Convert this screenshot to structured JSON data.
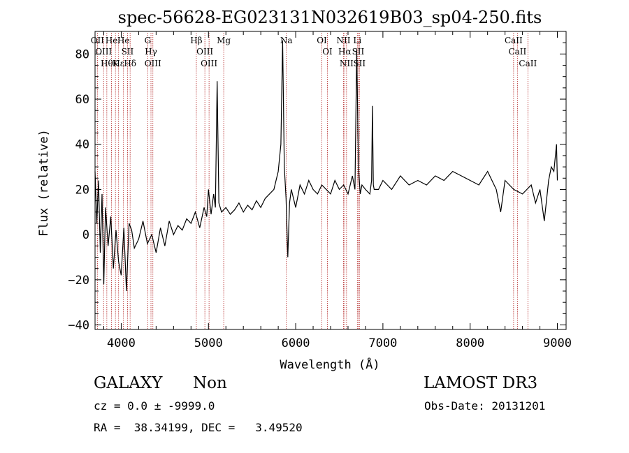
{
  "chart_data": {
    "type": "line",
    "title": "spec-56628-EG023131N032619B03_sp04-250.fits",
    "xlabel": "Wavelength (Å)",
    "ylabel": "Flux (relative)",
    "xlim": [
      3700,
      9100
    ],
    "ylim": [
      -42,
      90
    ],
    "x_ticks": [
      4000,
      5000,
      6000,
      7000,
      8000,
      9000
    ],
    "y_ticks": [
      -40,
      -20,
      0,
      20,
      40,
      60,
      80
    ],
    "line_color": "#000000",
    "marker_color": "#b22222",
    "series": [
      {
        "x": [
          3700,
          3720,
          3740,
          3760,
          3780,
          3800,
          3820,
          3850,
          3880,
          3910,
          3940,
          3970,
          4000,
          4030,
          4060,
          4090,
          4120,
          4150,
          4200,
          4250,
          4300,
          4350,
          4400,
          4450,
          4500,
          4550,
          4600,
          4650,
          4700,
          4750,
          4800,
          4850,
          4900,
          4950,
          4980,
          5000,
          5030,
          5060,
          5080,
          5100,
          5120,
          5150,
          5200,
          5250,
          5300,
          5350,
          5400,
          5450,
          5500,
          5550,
          5600,
          5650,
          5700,
          5750,
          5800,
          5830,
          5850,
          5870,
          5890,
          5910,
          5930,
          5950,
          6000,
          6050,
          6100,
          6150,
          6200,
          6250,
          6300,
          6350,
          6400,
          6450,
          6500,
          6550,
          6600,
          6650,
          6680,
          6700,
          6720,
          6740,
          6760,
          6800,
          6850,
          6870,
          6880,
          6890,
          6900,
          6950,
          7000,
          7100,
          7200,
          7300,
          7400,
          7500,
          7600,
          7700,
          7800,
          7900,
          8000,
          8100,
          8200,
          8300,
          8350,
          8400,
          8500,
          8600,
          8700,
          8750,
          8800,
          8850,
          8900,
          8930,
          8960,
          8990,
          9000
        ],
        "y": [
          28,
          5,
          24,
          -8,
          18,
          -22,
          12,
          -5,
          8,
          -15,
          2,
          -12,
          -18,
          3,
          -25,
          5,
          2,
          -6,
          -2,
          6,
          -4,
          0,
          -8,
          3,
          -5,
          6,
          0,
          4,
          2,
          7,
          5,
          10,
          3,
          12,
          8,
          20,
          9,
          18,
          12,
          68,
          14,
          10,
          12,
          9,
          11,
          14,
          10,
          13,
          11,
          15,
          12,
          16,
          18,
          20,
          28,
          40,
          86,
          30,
          16,
          -10,
          14,
          20,
          12,
          22,
          18,
          24,
          20,
          18,
          22,
          20,
          18,
          24,
          20,
          22,
          18,
          26,
          20,
          82,
          30,
          18,
          22,
          20,
          18,
          24,
          57,
          22,
          20,
          20,
          24,
          20,
          26,
          22,
          24,
          22,
          26,
          24,
          28,
          26,
          24,
          22,
          28,
          20,
          10,
          24,
          20,
          18,
          22,
          14,
          20,
          6,
          24,
          30,
          28,
          40,
          24
        ]
      }
    ],
    "lines": [
      {
        "wavelength": 3727,
        "label": "OII"
      },
      {
        "wavelength": 3798,
        "label": "OIII"
      },
      {
        "wavelength": 3835,
        "label": "Hθ"
      },
      {
        "wavelength": 3889,
        "label": "He"
      },
      {
        "wavelength": 3934,
        "label": "K"
      },
      {
        "wavelength": 3970,
        "label": "Hε"
      },
      {
        "wavelength": 4026,
        "label": "He"
      },
      {
        "wavelength": 4072,
        "label": "SII"
      },
      {
        "wavelength": 4102,
        "label": "Hδ"
      },
      {
        "wavelength": 4304,
        "label": "G"
      },
      {
        "wavelength": 4341,
        "label": "Hγ"
      },
      {
        "wavelength": 4363,
        "label": "OIII"
      },
      {
        "wavelength": 4861,
        "label": "Hβ"
      },
      {
        "wavelength": 4959,
        "label": "OIII"
      },
      {
        "wavelength": 5007,
        "label": "OIII"
      },
      {
        "wavelength": 5175,
        "label": "Mg"
      },
      {
        "wavelength": 5893,
        "label": "Na"
      },
      {
        "wavelength": 6300,
        "label": "OI"
      },
      {
        "wavelength": 6364,
        "label": "OI"
      },
      {
        "wavelength": 6548,
        "label": "NII"
      },
      {
        "wavelength": 6563,
        "label": "Hα"
      },
      {
        "wavelength": 6583,
        "label": "NII"
      },
      {
        "wavelength": 6707,
        "label": "Li"
      },
      {
        "wavelength": 6716,
        "label": "SII"
      },
      {
        "wavelength": 6731,
        "label": "SII"
      },
      {
        "wavelength": 8498,
        "label": "CaII"
      },
      {
        "wavelength": 8542,
        "label": "CaII"
      },
      {
        "wavelength": 8662,
        "label": "CaII"
      }
    ]
  },
  "info": {
    "object_class": "GALAXY",
    "subclass": "Non",
    "cz_text": "cz = 0.0 ± -9999.0",
    "coords_text": "RA =  38.34199, DEC =   3.49520",
    "survey": "LAMOST DR3",
    "obs_date": "Obs-Date: 20131201"
  }
}
